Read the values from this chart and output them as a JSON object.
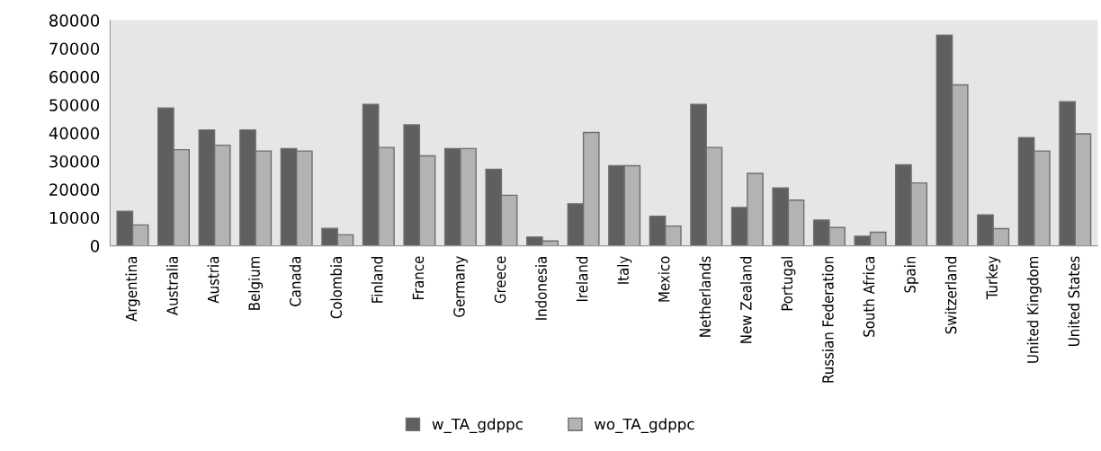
{
  "chart_data": {
    "type": "bar",
    "categories": [
      "Argentina",
      "Australia",
      "Austria",
      "Belgium",
      "Canada",
      "Colombia",
      "Finland",
      "France",
      "Germany",
      "Greece",
      "Indonesia",
      "Ireland",
      "Italy",
      "Mexico",
      "Netherlands",
      "New Zealand",
      "Portugal",
      "Russian Federation",
      "South Africa",
      "Spain",
      "Switzerland",
      "Turkey",
      "United Kingdom",
      "United States"
    ],
    "series": [
      {
        "name": "w_TA_gdppc",
        "color": "#5f5f5f",
        "values": [
          12200,
          48900,
          41100,
          41100,
          34500,
          6200,
          50200,
          42900,
          34500,
          27100,
          3100,
          14900,
          28400,
          10500,
          50200,
          13600,
          20500,
          9100,
          3400,
          28700,
          74700,
          11000,
          38400,
          51100
        ]
      },
      {
        "name": "wo_TA_gdppc",
        "color": "#b3b3b3",
        "values": [
          7400,
          34100,
          35700,
          33600,
          33600,
          3900,
          34900,
          31900,
          34500,
          17900,
          1700,
          40200,
          28400,
          7000,
          34900,
          25700,
          16200,
          6500,
          4800,
          22300,
          57100,
          6100,
          33600,
          39700
        ]
      }
    ],
    "ylim": [
      0,
      80000
    ],
    "yticks": [
      0,
      10000,
      20000,
      30000,
      40000,
      50000,
      60000,
      70000,
      80000
    ],
    "grid": false,
    "legend": "bottom"
  }
}
